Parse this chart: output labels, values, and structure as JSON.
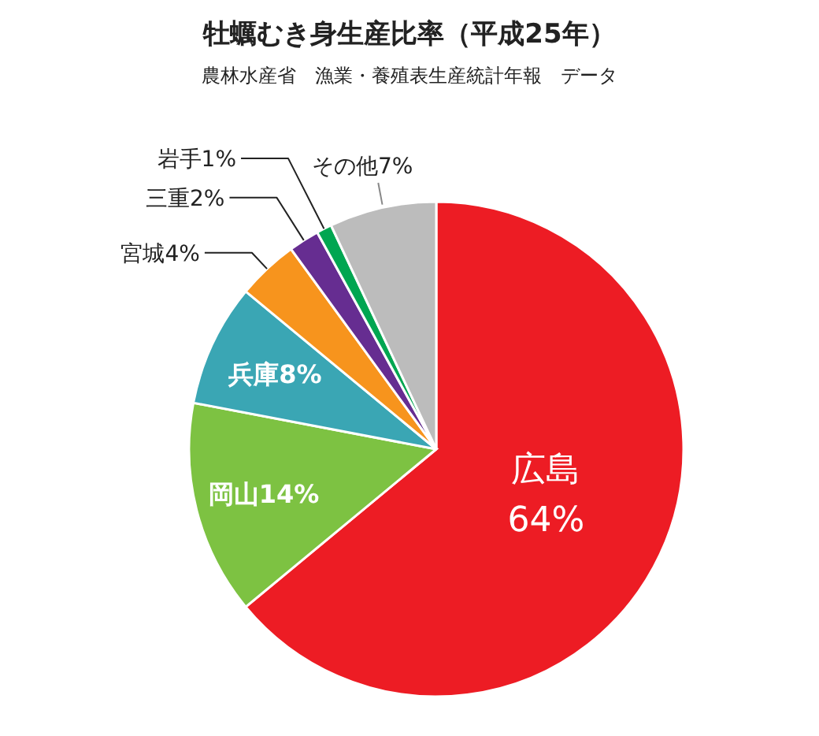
{
  "chart_data": {
    "type": "pie",
    "title": "牡蠣むき身生産比率（平成25年）",
    "subtitle": "農林水産省　漁業・養殖表生産統計年報　データ",
    "categories": [
      "広島",
      "岡山",
      "兵庫",
      "宮城",
      "三重",
      "岩手",
      "その他"
    ],
    "values": [
      64,
      14,
      8,
      4,
      2,
      1,
      7
    ],
    "value_labels": [
      "64%",
      "14%",
      "8%",
      "4%",
      "2%",
      "1%",
      "7%"
    ],
    "colors": [
      "#ed1c24",
      "#7dc242",
      "#3aa6b4",
      "#f7941d",
      "#662d91",
      "#00a651",
      "#bcbcbc"
    ]
  }
}
